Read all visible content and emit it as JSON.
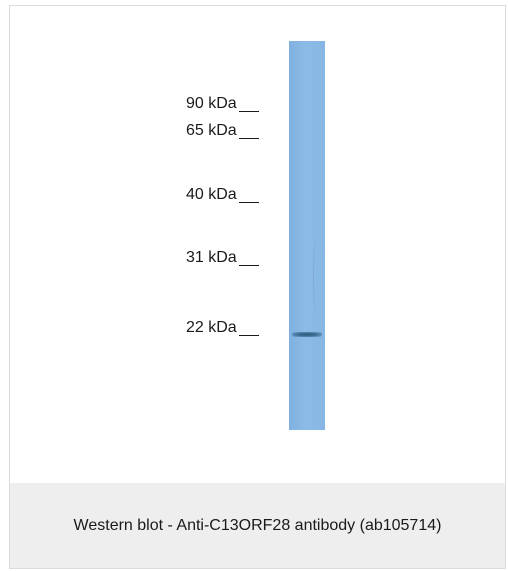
{
  "markers": [
    {
      "label": "90 kDa"
    },
    {
      "label": "65 kDa"
    },
    {
      "label": "40 kDa"
    },
    {
      "label": "31 kDa"
    },
    {
      "label": "22 kDa"
    }
  ],
  "caption": "Western blot - Anti-C13ORF28 antibody (ab105714)",
  "colors": {
    "lane": "#8dbbe7",
    "band": "#2f5e7d",
    "caption_background": "#eeeeee"
  }
}
